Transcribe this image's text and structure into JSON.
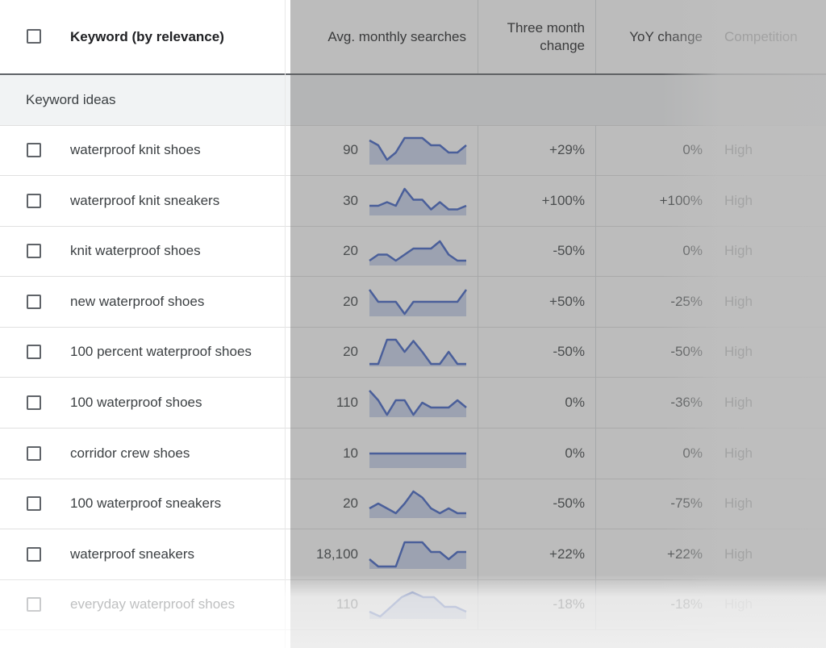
{
  "header": {
    "keyword": "Keyword (by relevance)",
    "avg_searches": "Avg. monthly searches",
    "three_month_line1": "Three month",
    "three_month_line2": "change",
    "yoy": "YoY change",
    "competition": "Competition"
  },
  "section_label": "Keyword ideas",
  "colors": {
    "trend_line": "#3c5fc4",
    "trend_fill": "#c9d2ec"
  },
  "rows": [
    {
      "keyword": "waterproof knit shoes",
      "avg": "90",
      "three_month": "+29%",
      "yoy": "0%",
      "competition": "High",
      "trend": [
        0.9,
        0.7,
        0.1,
        0.4,
        1,
        1,
        1,
        0.7,
        0.7,
        0.4,
        0.4,
        0.7
      ]
    },
    {
      "keyword": "waterproof knit sneakers",
      "avg": "30",
      "three_month": "+100%",
      "yoy": "+100%",
      "competition": "High",
      "trend": [
        0.3,
        0.3,
        0.45,
        0.3,
        1,
        0.55,
        0.55,
        0.15,
        0.45,
        0.15,
        0.15,
        0.3
      ]
    },
    {
      "keyword": "knit waterproof shoes",
      "avg": "20",
      "three_month": "-50%",
      "yoy": "0%",
      "competition": "High",
      "trend": [
        0.1,
        0.35,
        0.35,
        0.1,
        0.35,
        0.6,
        0.6,
        0.6,
        0.9,
        0.35,
        0.1,
        0.1
      ]
    },
    {
      "keyword": "new waterproof shoes",
      "avg": "20",
      "three_month": "+50%",
      "yoy": "-25%",
      "competition": "High",
      "trend": [
        1,
        0.5,
        0.5,
        0.5,
        0,
        0.5,
        0.5,
        0.5,
        0.5,
        0.5,
        0.5,
        1
      ]
    },
    {
      "keyword": "100 percent waterproof shoes",
      "avg": "20",
      "three_month": "-50%",
      "yoy": "-50%",
      "competition": "High",
      "trend": [
        0,
        0,
        1,
        1,
        0.5,
        0.95,
        0.5,
        0,
        0,
        0.5,
        0,
        0
      ]
    },
    {
      "keyword": "100 waterproof shoes",
      "avg": "110",
      "three_month": "0%",
      "yoy": "-36%",
      "competition": "High",
      "trend": [
        1,
        0.6,
        0,
        0.6,
        0.6,
        0,
        0.5,
        0.3,
        0.3,
        0.3,
        0.6,
        0.3
      ]
    },
    {
      "keyword": "corridor crew shoes",
      "avg": "10",
      "three_month": "0%",
      "yoy": "0%",
      "competition": "High",
      "trend": [
        0.5,
        0.5,
        0.5,
        0.5,
        0.5,
        0.5,
        0.5,
        0.5,
        0.5,
        0.5,
        0.5,
        0.5
      ]
    },
    {
      "keyword": "100 waterproof sneakers",
      "avg": "20",
      "three_month": "-50%",
      "yoy": "-75%",
      "competition": "High",
      "trend": [
        0.3,
        0.5,
        0.3,
        0.1,
        0.5,
        1,
        0.75,
        0.3,
        0.1,
        0.3,
        0.1,
        0.1
      ]
    },
    {
      "keyword": "waterproof sneakers",
      "avg": "18,100",
      "three_month": "+22%",
      "yoy": "+22%",
      "competition": "High",
      "trend": [
        0.3,
        0,
        0,
        0,
        1,
        1,
        1,
        0.6,
        0.6,
        0.3,
        0.6,
        0.6
      ]
    },
    {
      "keyword": "everyday waterproof shoes",
      "avg": "110",
      "three_month": "-18%",
      "yoy": "-18%",
      "competition": "High",
      "trend": [
        0.2,
        0,
        0.4,
        0.8,
        1,
        0.8,
        0.8,
        0.4,
        0.4,
        0.2
      ]
    }
  ]
}
